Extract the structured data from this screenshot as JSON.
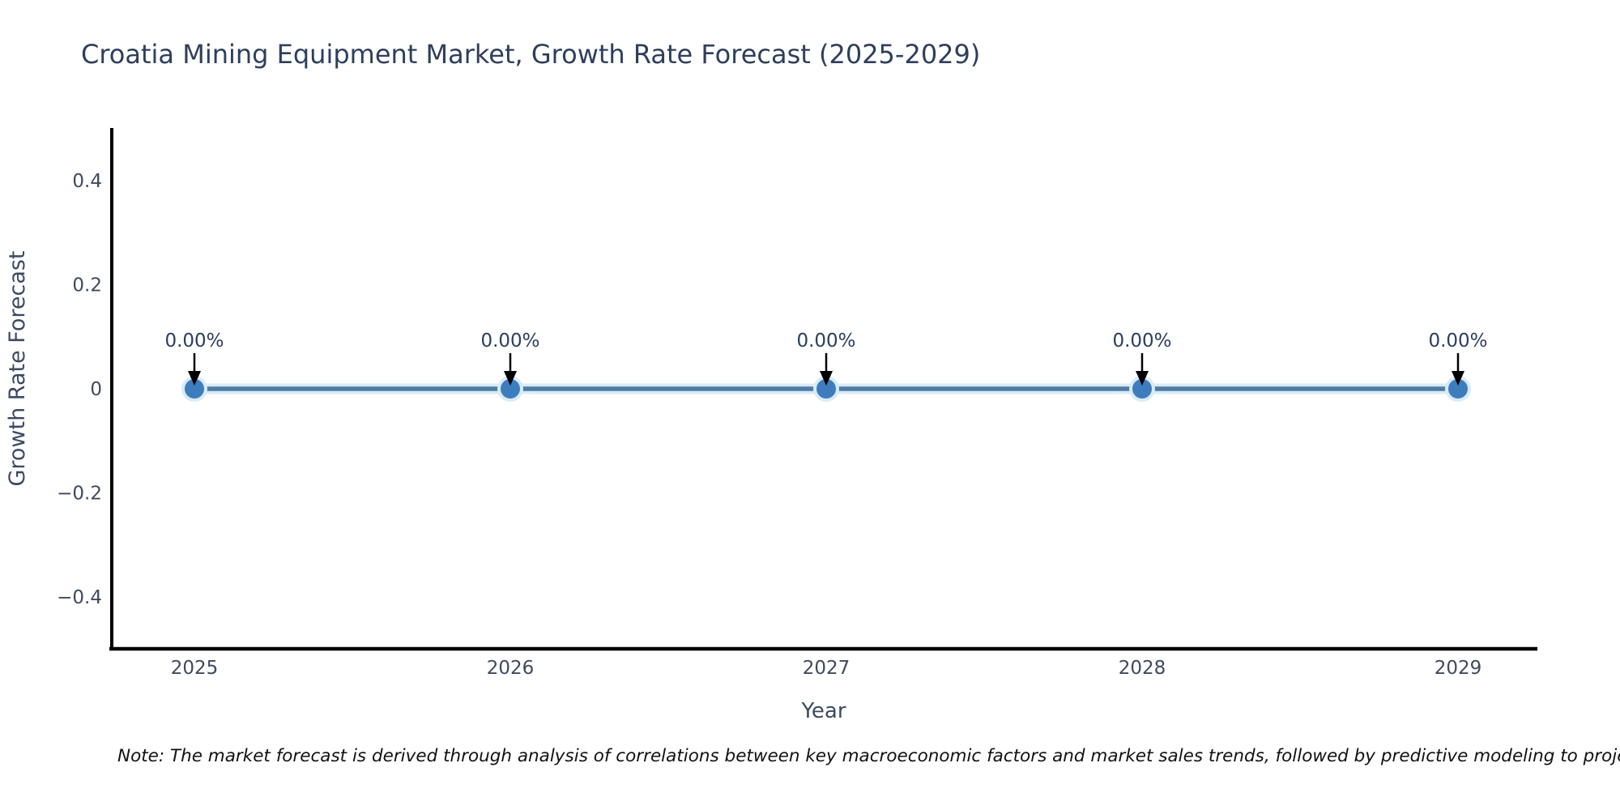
{
  "title": "Croatia Mining Equipment Market, Growth Rate Forecast (2025-2029)",
  "note": "Note: The market forecast is derived through analysis of correlations between key macroeconomic factors and market sales trends, followed by predictive modeling to project future sa",
  "chart_data": {
    "type": "line",
    "title": "Croatia Mining Equipment Market, Growth Rate Forecast (2025-2029)",
    "x": [
      2025,
      2026,
      2027,
      2028,
      2029
    ],
    "series": [
      {
        "name": "Growth Rate Forecast",
        "values": [
          0,
          0,
          0,
          0,
          0
        ]
      }
    ],
    "point_labels": [
      "0.00%",
      "0.00%",
      "0.00%",
      "0.00%",
      "0.00%"
    ],
    "xlabel": "Year",
    "ylabel": "Growth Rate Forecast",
    "yticks": [
      0.4,
      0.2,
      0,
      -0.2,
      -0.4
    ],
    "ylim": [
      -0.5,
      0.5
    ],
    "grid": false,
    "legend_position": "none",
    "annotations_have_arrows": true
  },
  "colors": {
    "title_text": "#2e3f5c",
    "axis_line": "#000000",
    "tick_text": "#3f4a5e",
    "axis_title_text": "#3b4a63",
    "line_core": "#4e7ca4",
    "line_halo": "#d9ebf6",
    "marker_fill": "#3d7dbd",
    "annotation_text": "#2a3f5f",
    "arrow": "#000000",
    "note_text": "#111111",
    "background": "#ffffff"
  }
}
